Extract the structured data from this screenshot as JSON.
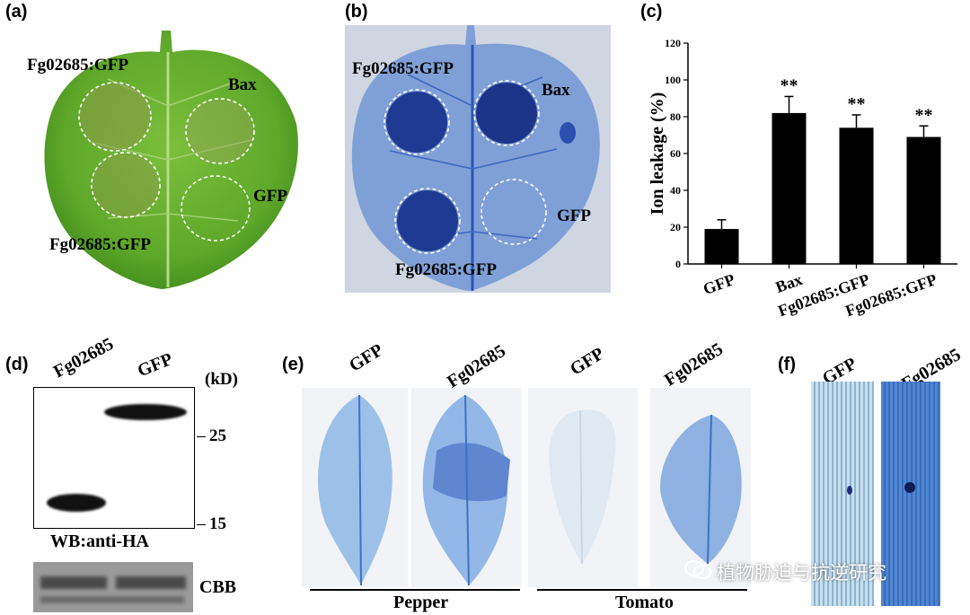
{
  "figure": {
    "panels": [
      "(a)",
      "(b)",
      "(c)",
      "(d)",
      "(e)",
      "(f)"
    ]
  },
  "panel_a": {
    "labels": [
      "Fg02685:GFP",
      "Bax",
      "GFP",
      "Fg02685:GFP"
    ]
  },
  "panel_b": {
    "labels": [
      "Fg02685:GFP",
      "Bax",
      "GFP",
      "Fg02685:GFP"
    ]
  },
  "chart_data": {
    "type": "bar",
    "title": "",
    "xlabel": "",
    "ylabel": "Ion leakage (%)",
    "ylim": [
      0,
      120
    ],
    "yticks": [
      0,
      20,
      40,
      60,
      80,
      100,
      120
    ],
    "categories": [
      "GFP",
      "Bax",
      "Fg02685:GFP",
      "Fg02685:GFP"
    ],
    "values": [
      19,
      82,
      74,
      69
    ],
    "errors": [
      5,
      9,
      7,
      6
    ],
    "significance": [
      "",
      "**",
      "**",
      "**"
    ],
    "bar_color": "#000000"
  },
  "panel_d": {
    "lanes": [
      "Fg02685",
      "GFP"
    ],
    "unit": "(kD)",
    "markers": [
      "25",
      "15"
    ],
    "wb_label": "WB:anti-HA",
    "loading_label": "CBB"
  },
  "panel_e": {
    "lanes": [
      "GFP",
      "Fg02685",
      "GFP",
      "Fg02685"
    ],
    "groups": [
      "Pepper",
      "Tomato"
    ]
  },
  "panel_f": {
    "lanes": [
      "GFP",
      "Fg02685"
    ]
  },
  "watermark": "植物胁迫与抗逆研究"
}
